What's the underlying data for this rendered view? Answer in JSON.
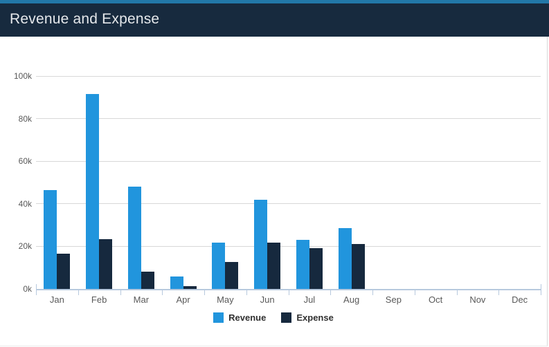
{
  "header": {
    "title": "Revenue and Expense"
  },
  "colors": {
    "header_bg": "#172A3E",
    "header_strip": "#2278A8",
    "title_text": "#E5E8EB",
    "revenue": "#2195DD",
    "expense": "#16293E",
    "gridline": "#D8D8D8",
    "axis_line": "#B7C9DE",
    "axis_label_text": "#595959",
    "legend_text": "#303030",
    "panel_border": "#D9D9D9"
  },
  "chart_data": {
    "type": "bar",
    "title": "Revenue and Expense",
    "categories": [
      "Jan",
      "Feb",
      "Mar",
      "Apr",
      "May",
      "Jun",
      "Jul",
      "Aug",
      "Sep",
      "Oct",
      "Nov",
      "Dec"
    ],
    "series": [
      {
        "name": "Revenue",
        "color": "#2195DD",
        "values": [
          46.5,
          91.5,
          48,
          6,
          21.8,
          42,
          23.2,
          28.5,
          0,
          0,
          0,
          0
        ]
      },
      {
        "name": "Expense",
        "color": "#16293E",
        "values": [
          16.5,
          23.3,
          8,
          1.2,
          12.5,
          21.9,
          19,
          21,
          0,
          0,
          0,
          0
        ]
      }
    ],
    "unit": "thousands (k)",
    "y_ticks": [
      "0k",
      "20k",
      "40k",
      "60k",
      "80k",
      "100k"
    ],
    "y_tick_values": [
      0,
      20,
      40,
      60,
      80,
      100
    ],
    "ylim": [
      0,
      100
    ],
    "xlabel": "",
    "ylabel": "",
    "grid": "horizontal",
    "legend_position": "bottom"
  }
}
